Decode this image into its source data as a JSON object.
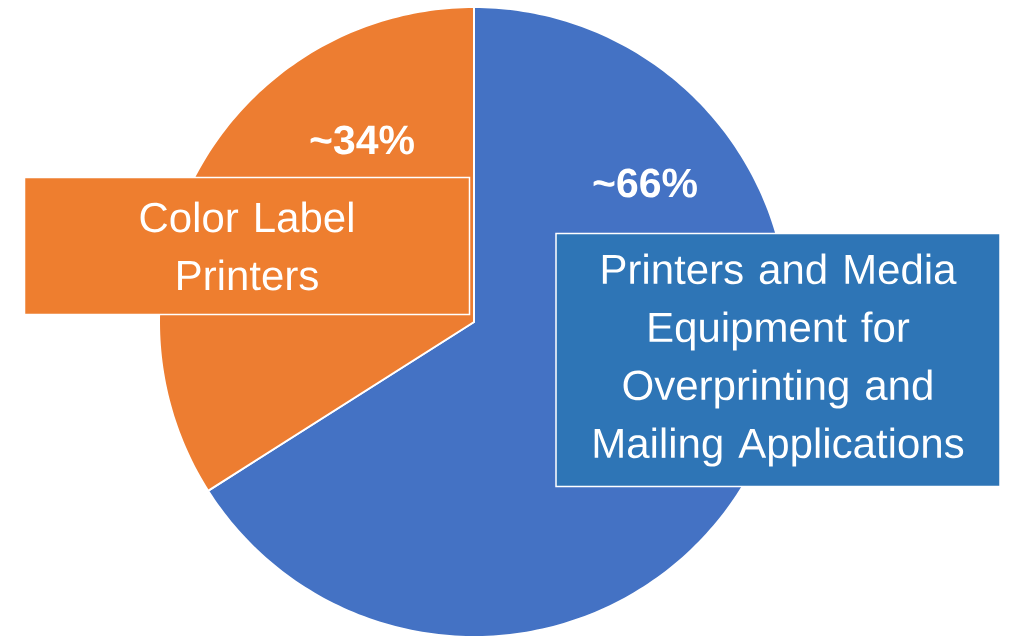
{
  "chart_data": {
    "type": "pie",
    "categories": [
      "Printers and Media Equipment for Overprinting and Mailing Applications",
      "Color Label Printers"
    ],
    "values": [
      66,
      34
    ],
    "colors": [
      "#4472c4",
      "#ed7d31"
    ],
    "value_labels": [
      "~66%",
      "~34%"
    ]
  }
}
